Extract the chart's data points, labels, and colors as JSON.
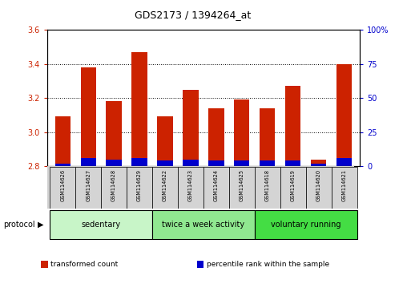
{
  "title": "GDS2173 / 1394264_at",
  "samples": [
    "GSM114626",
    "GSM114627",
    "GSM114628",
    "GSM114629",
    "GSM114622",
    "GSM114623",
    "GSM114624",
    "GSM114625",
    "GSM114618",
    "GSM114619",
    "GSM114620",
    "GSM114621"
  ],
  "transformed_count": [
    3.09,
    3.38,
    3.18,
    3.47,
    3.09,
    3.25,
    3.14,
    3.19,
    3.14,
    3.27,
    2.84,
    3.4
  ],
  "percentile_rank": [
    2,
    6,
    5,
    6,
    4,
    5,
    4,
    4,
    4,
    4,
    2,
    6
  ],
  "ylim_left": [
    2.8,
    3.6
  ],
  "ylim_right": [
    0,
    100
  ],
  "yticks_left": [
    2.8,
    3.0,
    3.2,
    3.4,
    3.6
  ],
  "yticks_right": [
    0,
    25,
    50,
    75,
    100
  ],
  "groups": [
    {
      "label": "sedentary",
      "indices": [
        0,
        1,
        2,
        3
      ],
      "color": "#c8f5c8"
    },
    {
      "label": "twice a week activity",
      "indices": [
        4,
        5,
        6,
        7
      ],
      "color": "#90e890"
    },
    {
      "label": "voluntary running",
      "indices": [
        8,
        9,
        10,
        11
      ],
      "color": "#44dd44"
    }
  ],
  "protocol_label": "protocol",
  "bar_color_red": "#cc2200",
  "bar_color_blue": "#0000cc",
  "bar_width": 0.6,
  "bg_color": "#ffffff",
  "plot_bg": "#ffffff",
  "grid_color": "#000000",
  "tick_color_left": "#cc2200",
  "tick_color_right": "#0000cc",
  "sample_box_color": "#d0d0d0",
  "legend_items": [
    {
      "label": "transformed count",
      "color": "#cc2200"
    },
    {
      "label": "percentile rank within the sample",
      "color": "#0000cc"
    }
  ]
}
